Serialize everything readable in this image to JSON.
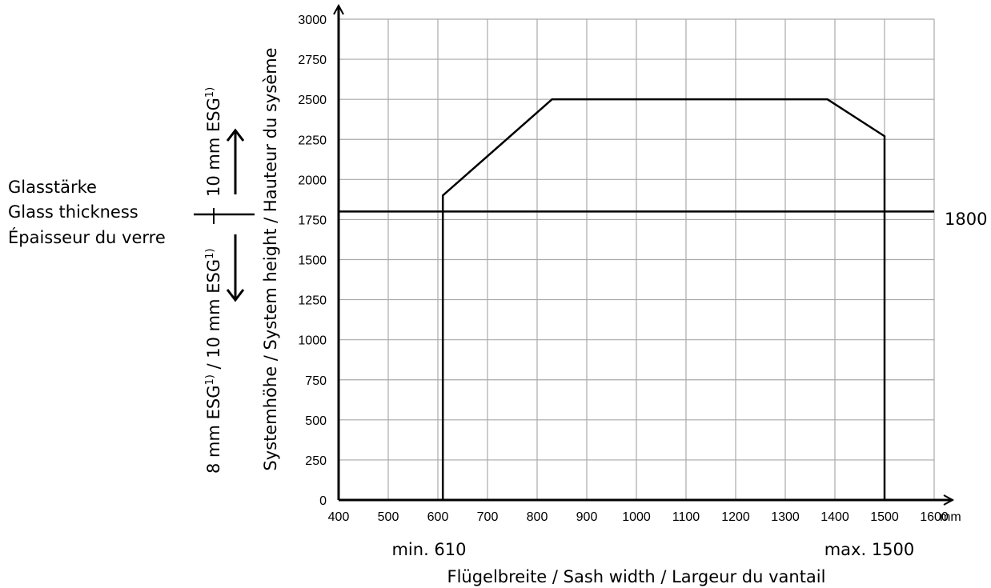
{
  "chart_data": {
    "type": "line",
    "title": "",
    "xlabel": "Flügelbreite / Sash width / Largeur du vantail",
    "ylabel": "Systemhöhe / System height / Hauteur du sysème",
    "x_unit": "mm",
    "xlim": [
      400,
      1600
    ],
    "ylim": [
      0,
      3000
    ],
    "x_ticks": [
      400,
      500,
      600,
      700,
      800,
      900,
      1000,
      1100,
      1200,
      1300,
      1400,
      1500,
      1600
    ],
    "y_ticks": [
      0,
      250,
      500,
      750,
      1000,
      1250,
      1500,
      1750,
      2000,
      2250,
      2500,
      2750,
      3000
    ],
    "grid": true,
    "series": [
      {
        "x": [
          610,
          610,
          830,
          1385,
          1500,
          1500
        ],
        "y": [
          0,
          1900,
          2500,
          2500,
          2270,
          0
        ]
      }
    ],
    "reference_line": {
      "y": 1800,
      "label": "1800"
    },
    "annotations": {
      "min_width": "min. 610",
      "max_width": "max. 1500"
    },
    "glass_legend": {
      "title_lines": [
        "Glasstärke",
        "Glass thickness",
        "Épaisseur du verre"
      ],
      "above_main": "10 mm ESG",
      "above_sup": "1)",
      "below_part1": "8 mm ESG",
      "below_sup1": "1)",
      "below_part2": " / 10 mm ESG",
      "below_sup2": "1)"
    }
  }
}
